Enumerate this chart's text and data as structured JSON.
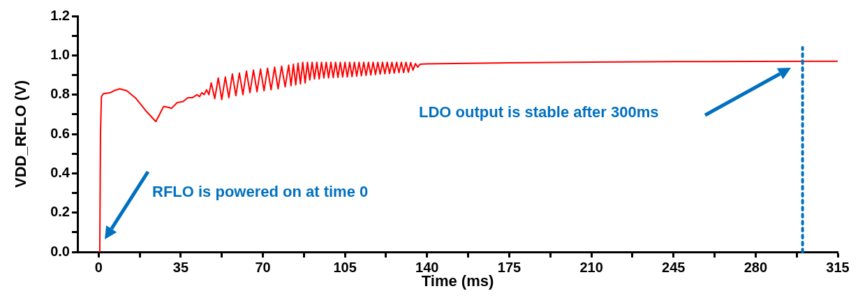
{
  "chart_data": {
    "type": "line",
    "xlabel": "Time (ms)",
    "ylabel": "VDD_RFLO (V)",
    "xlim": [
      -9,
      315
    ],
    "ylim": [
      0,
      1.2
    ],
    "xticks": [
      0,
      {
        "value": 17.5,
        "label": null
      },
      35,
      {
        "value": 52.5,
        "label": null
      },
      70,
      {
        "value": 87.5,
        "label": null
      },
      105,
      {
        "value": 122.5,
        "label": null
      },
      140,
      {
        "value": 157.5,
        "label": null
      },
      175,
      {
        "value": 192.5,
        "label": null
      },
      210,
      {
        "value": 227.5,
        "label": null
      },
      245,
      {
        "value": 262.5,
        "label": null
      },
      280,
      {
        "value": 297.5,
        "label": null
      },
      315
    ],
    "yticks": [
      {
        "value": 0,
        "label": "0.0"
      },
      {
        "value": 0.1,
        "label": null
      },
      0.2,
      {
        "value": 0.3,
        "label": null
      },
      0.4,
      {
        "value": 0.5,
        "label": null
      },
      0.6,
      {
        "value": 0.7,
        "label": null
      },
      0.8,
      {
        "value": 0.9,
        "label": null
      },
      {
        "value": 1,
        "label": "1.0"
      },
      {
        "value": 1.1,
        "label": null
      },
      1.2
    ],
    "x": [
      0,
      0.5,
      0.8,
      1.2,
      2,
      5,
      6.5,
      9,
      12,
      16,
      20,
      24.4,
      26,
      27.7,
      30,
      31,
      33.5,
      36,
      38,
      40,
      42,
      43,
      44,
      45,
      46,
      47,
      48,
      49.5,
      51,
      52.5,
      54,
      55.5,
      57,
      58.5,
      60,
      61.5,
      63,
      64.5,
      66,
      67.5,
      69,
      70.5,
      72,
      73.5,
      75,
      76.5,
      78,
      79.5,
      81,
      82,
      83,
      84,
      85,
      86,
      87,
      88,
      89,
      90,
      91,
      92,
      93,
      94,
      95,
      96,
      97,
      98,
      99,
      100,
      101,
      102,
      103,
      104,
      105,
      106,
      107,
      108,
      109,
      110,
      111,
      112,
      113,
      114,
      115,
      116,
      117,
      118,
      119,
      120,
      121,
      122,
      123,
      124,
      125,
      126,
      127,
      128,
      129,
      130,
      131,
      132,
      133,
      134,
      135,
      136,
      137,
      140,
      175,
      210,
      245,
      280,
      315
    ],
    "series": [
      {
        "color": "#ff0000",
        "values": [
          0,
          0,
          0.6,
          0.79,
          0.805,
          0.81,
          0.82,
          0.83,
          0.82,
          0.78,
          0.72,
          0.663,
          0.7,
          0.74,
          0.735,
          0.73,
          0.76,
          0.765,
          0.785,
          0.785,
          0.8,
          0.79,
          0.81,
          0.8,
          0.825,
          0.8,
          0.86,
          0.78,
          0.885,
          0.775,
          0.89,
          0.785,
          0.905,
          0.795,
          0.91,
          0.8,
          0.92,
          0.81,
          0.925,
          0.815,
          0.93,
          0.82,
          0.935,
          0.825,
          0.94,
          0.83,
          0.945,
          0.84,
          0.95,
          0.845,
          0.955,
          0.85,
          0.96,
          0.855,
          0.965,
          0.86,
          0.965,
          0.875,
          0.965,
          0.88,
          0.965,
          0.88,
          0.965,
          0.885,
          0.965,
          0.885,
          0.965,
          0.887,
          0.965,
          0.888,
          0.965,
          0.89,
          0.965,
          0.89,
          0.965,
          0.892,
          0.965,
          0.894,
          0.965,
          0.896,
          0.965,
          0.898,
          0.965,
          0.9,
          0.965,
          0.902,
          0.965,
          0.904,
          0.965,
          0.906,
          0.965,
          0.908,
          0.965,
          0.91,
          0.965,
          0.912,
          0.965,
          0.912,
          0.965,
          0.914,
          0.963,
          0.925,
          0.958,
          0.94,
          0.955,
          0.957,
          0.962,
          0.966,
          0.968,
          0.969,
          0.97
        ]
      }
    ],
    "ref_lines": [
      {
        "axis": "x",
        "value": 300,
        "color": "#0070c0",
        "line_style": "dotted"
      }
    ],
    "annotations": [
      "RFLO is powered on at time 0",
      "LDO output is stable after 300ms"
    ]
  }
}
